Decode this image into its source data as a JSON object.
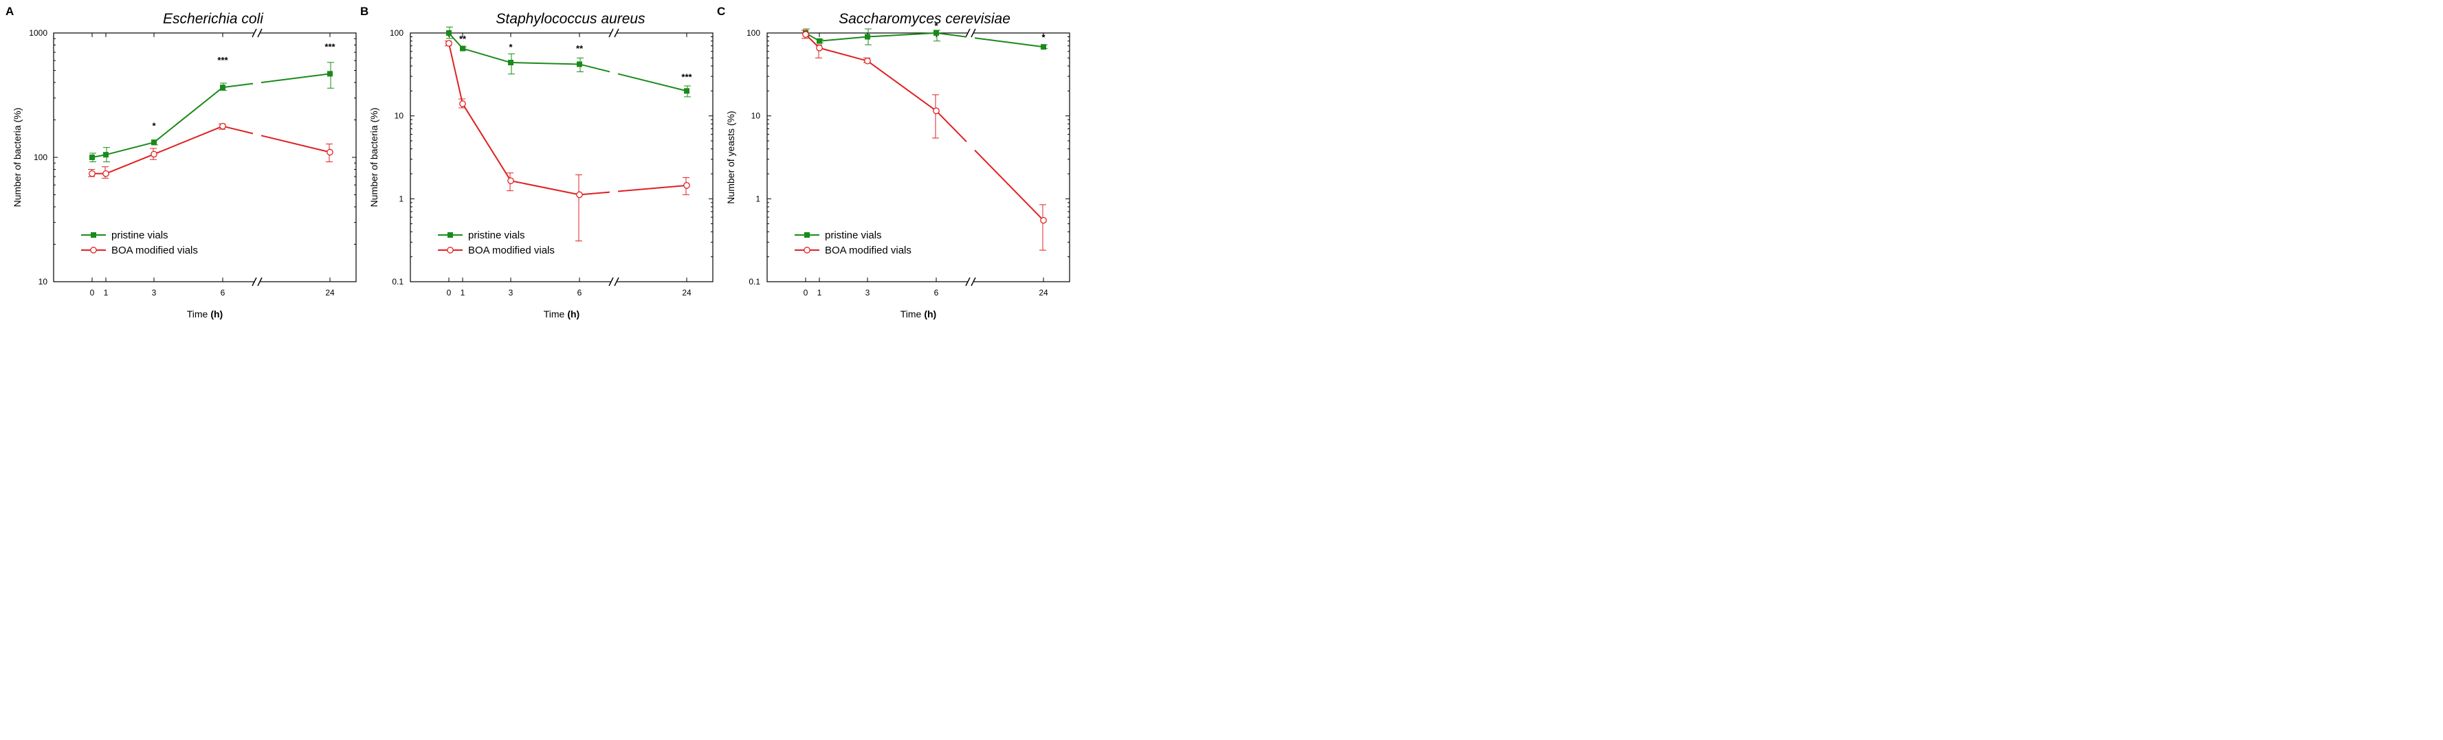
{
  "colors": {
    "pristine": "#1a8a1a",
    "boa": "#e02020",
    "axis": "#000000"
  },
  "chart_data": [
    {
      "type": "line",
      "panel": "A",
      "title": "Escherichia coli",
      "xlabel": "Time",
      "xlabel_unit": "(h)",
      "ylabel": "Number of bacteria (%)",
      "yscale": "log",
      "ylim": [
        10,
        1000
      ],
      "yticks": [
        10,
        100,
        1000
      ],
      "ytick_labels": [
        "10",
        "100",
        "1000"
      ],
      "x": [
        0,
        1,
        3,
        6,
        24
      ],
      "xtick_labels": [
        "0",
        "1",
        "3",
        "6",
        "24"
      ],
      "axis_break": "between 6 and 24",
      "legend": [
        "pristine vials",
        "BOA modified vials"
      ],
      "series": [
        {
          "name": "pristine vials",
          "values": [
            100,
            105,
            132,
            365,
            470
          ],
          "err_up": [
            108,
            120,
            138,
            395,
            580
          ],
          "err_down": [
            92,
            92,
            126,
            345,
            360
          ]
        },
        {
          "name": "BOA modified vials",
          "values": [
            74,
            74,
            106,
            178,
            110
          ],
          "err_up": [
            80,
            84,
            118,
            186,
            128
          ],
          "err_down": [
            70,
            68,
            96,
            168,
            92
          ]
        }
      ],
      "significance": [
        {
          "x": 3,
          "y": 170,
          "label": "*"
        },
        {
          "x": 6,
          "y": 570,
          "label": "***"
        },
        {
          "x": 24,
          "y": 730,
          "label": "***"
        }
      ]
    },
    {
      "type": "line",
      "panel": "B",
      "title": "Staphylococcus aureus",
      "xlabel": "Time",
      "xlabel_unit": "(h)",
      "ylabel": "Number of bacteria (%)",
      "yscale": "log",
      "ylim": [
        0.1,
        100
      ],
      "yticks": [
        0.1,
        1,
        10,
        100
      ],
      "ytick_labels": [
        "0.1",
        "1",
        "10",
        "100"
      ],
      "x": [
        0,
        1,
        3,
        6,
        24
      ],
      "xtick_labels": [
        "0",
        "1",
        "3",
        "6",
        "24"
      ],
      "axis_break": "between 6 and 24",
      "legend": [
        "pristine vials",
        "BOA modified vials"
      ],
      "series": [
        {
          "name": "pristine vials",
          "values": [
            100,
            65,
            44,
            42,
            20
          ],
          "err_up": [
            118,
            68,
            56,
            50,
            23
          ],
          "err_down": [
            86,
            62,
            32,
            34,
            17
          ]
        },
        {
          "name": "BOA modified vials",
          "values": [
            75,
            14,
            1.65,
            1.12,
            1.45
          ],
          "err_up": [
            80,
            16,
            2.05,
            1.95,
            1.8
          ],
          "err_down": [
            70,
            12.5,
            1.25,
            0.31,
            1.12
          ]
        }
      ],
      "significance": [
        {
          "x": 1,
          "y": 78,
          "label": "**"
        },
        {
          "x": 3,
          "y": 62,
          "label": "*"
        },
        {
          "x": 6,
          "y": 60,
          "label": "**"
        },
        {
          "x": 24,
          "y": 27,
          "label": "***"
        }
      ]
    },
    {
      "type": "line",
      "panel": "C",
      "title": "Saccharomyces cerevisiae",
      "xlabel": "Time",
      "xlabel_unit": "(h)",
      "ylabel": "Number of yeasts (%)",
      "yscale": "log",
      "ylim": [
        0.1,
        100
      ],
      "yticks": [
        0.1,
        1,
        10,
        100
      ],
      "ytick_labels": [
        "0.1",
        "1",
        "10",
        "100"
      ],
      "x": [
        0,
        1,
        3,
        6,
        24
      ],
      "xtick_labels": [
        "0",
        "1",
        "3",
        "6",
        "24"
      ],
      "axis_break": "between 6 and 24",
      "legend": [
        "pristine vials",
        "BOA modified vials"
      ],
      "series": [
        {
          "name": "pristine vials",
          "values": [
            100,
            80,
            90,
            100,
            68
          ],
          "err_up": [
            112,
            84,
            112,
            108,
            72
          ],
          "err_down": [
            92,
            76,
            72,
            80,
            65
          ]
        },
        {
          "name": "BOA modified vials",
          "values": [
            96,
            66,
            46,
            11.5,
            0.55
          ],
          "err_up": [
            108,
            72,
            50,
            18,
            0.85
          ],
          "err_down": [
            86,
            50,
            44,
            5.4,
            0.24
          ]
        }
      ],
      "significance": [
        {
          "x": 6,
          "y": 112,
          "label": "*"
        },
        {
          "x": 24,
          "y": 82,
          "label": "*"
        }
      ]
    }
  ]
}
